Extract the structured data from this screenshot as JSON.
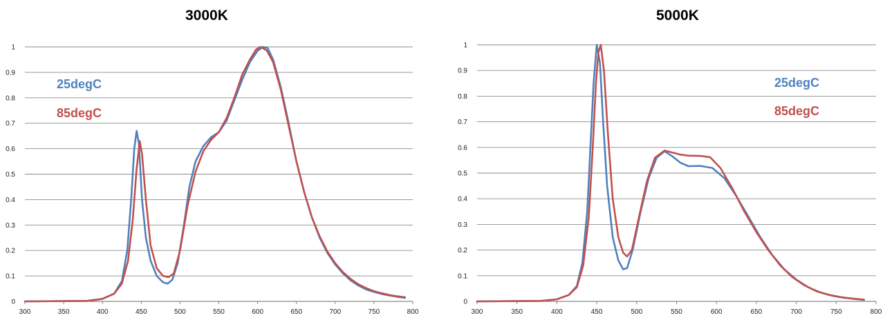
{
  "chart_data": [
    {
      "type": "line",
      "title": "3000K",
      "xlabel": "",
      "ylabel": "",
      "xlim": [
        300,
        800
      ],
      "ylim": [
        0,
        1
      ],
      "x_ticks": [
        "300",
        "350",
        "400",
        "450",
        "500",
        "550",
        "600",
        "650",
        "700",
        "750",
        "800"
      ],
      "y_ticks": [
        "0",
        "0.1",
        "0.2",
        "0.3",
        "0.4",
        "0.5",
        "0.6",
        "0.7",
        "0.8",
        "0.9",
        "1"
      ],
      "grid": "horizontal",
      "legend": "upper-left, text labels",
      "series": [
        {
          "name": "25degC",
          "color": "#4f81bd",
          "points": [
            [
              300,
              0
            ],
            [
              380,
              0.002
            ],
            [
              400,
              0.01
            ],
            [
              415,
              0.03
            ],
            [
              425,
              0.08
            ],
            [
              432,
              0.2
            ],
            [
              437,
              0.4
            ],
            [
              441,
              0.6
            ],
            [
              444,
              0.67
            ],
            [
              447,
              0.62
            ],
            [
              451,
              0.4
            ],
            [
              456,
              0.25
            ],
            [
              462,
              0.16
            ],
            [
              470,
              0.1
            ],
            [
              478,
              0.075
            ],
            [
              484,
              0.07
            ],
            [
              490,
              0.085
            ],
            [
              497,
              0.15
            ],
            [
              505,
              0.3
            ],
            [
              512,
              0.45
            ],
            [
              520,
              0.55
            ],
            [
              530,
              0.61
            ],
            [
              540,
              0.645
            ],
            [
              550,
              0.665
            ],
            [
              560,
              0.71
            ],
            [
              570,
              0.79
            ],
            [
              580,
              0.87
            ],
            [
              590,
              0.94
            ],
            [
              600,
              0.985
            ],
            [
              607,
              1.0
            ],
            [
              613,
              0.995
            ],
            [
              620,
              0.95
            ],
            [
              630,
              0.84
            ],
            [
              640,
              0.7
            ],
            [
              650,
              0.55
            ],
            [
              660,
              0.43
            ],
            [
              670,
              0.33
            ],
            [
              680,
              0.25
            ],
            [
              690,
              0.19
            ],
            [
              700,
              0.145
            ],
            [
              710,
              0.11
            ],
            [
              720,
              0.082
            ],
            [
              730,
              0.062
            ],
            [
              740,
              0.047
            ],
            [
              750,
              0.037
            ],
            [
              760,
              0.029
            ],
            [
              770,
              0.023
            ],
            [
              780,
              0.018
            ],
            [
              790,
              0.014
            ]
          ]
        },
        {
          "name": "85degC",
          "color": "#c0504d",
          "points": [
            [
              300,
              0
            ],
            [
              380,
              0.002
            ],
            [
              400,
              0.01
            ],
            [
              415,
              0.03
            ],
            [
              425,
              0.07
            ],
            [
              433,
              0.16
            ],
            [
              439,
              0.32
            ],
            [
              444,
              0.52
            ],
            [
              448,
              0.63
            ],
            [
              451,
              0.58
            ],
            [
              456,
              0.4
            ],
            [
              462,
              0.22
            ],
            [
              470,
              0.13
            ],
            [
              478,
              0.1
            ],
            [
              485,
              0.095
            ],
            [
              492,
              0.11
            ],
            [
              500,
              0.2
            ],
            [
              510,
              0.38
            ],
            [
              520,
              0.51
            ],
            [
              530,
              0.59
            ],
            [
              540,
              0.635
            ],
            [
              550,
              0.665
            ],
            [
              560,
              0.72
            ],
            [
              570,
              0.8
            ],
            [
              580,
              0.89
            ],
            [
              590,
              0.95
            ],
            [
              598,
              0.99
            ],
            [
              604,
              1.0
            ],
            [
              612,
              0.985
            ],
            [
              620,
              0.94
            ],
            [
              630,
              0.83
            ],
            [
              640,
              0.69
            ],
            [
              650,
              0.55
            ],
            [
              660,
              0.43
            ],
            [
              670,
              0.33
            ],
            [
              680,
              0.255
            ],
            [
              690,
              0.195
            ],
            [
              700,
              0.15
            ],
            [
              710,
              0.115
            ],
            [
              720,
              0.088
            ],
            [
              730,
              0.067
            ],
            [
              740,
              0.052
            ],
            [
              750,
              0.04
            ],
            [
              760,
              0.032
            ],
            [
              770,
              0.025
            ],
            [
              780,
              0.02
            ],
            [
              790,
              0.016
            ]
          ]
        }
      ]
    },
    {
      "type": "line",
      "title": "5000K",
      "xlabel": "",
      "ylabel": "",
      "xlim": [
        300,
        800
      ],
      "ylim": [
        0,
        1
      ],
      "x_ticks": [
        "300",
        "350",
        "400",
        "450",
        "500",
        "550",
        "600",
        "650",
        "700",
        "750",
        "800"
      ],
      "y_ticks": [
        "0",
        "0.1",
        "0.2",
        "0.3",
        "0.4",
        "0.5",
        "0.6",
        "0.7",
        "0.8",
        "0.9",
        "1"
      ],
      "grid": "horizontal",
      "legend": "upper-right, text labels",
      "series": [
        {
          "name": "25degC",
          "color": "#4f81bd",
          "points": [
            [
              300,
              0
            ],
            [
              380,
              0.002
            ],
            [
              400,
              0.008
            ],
            [
              415,
              0.025
            ],
            [
              425,
              0.06
            ],
            [
              432,
              0.15
            ],
            [
              438,
              0.35
            ],
            [
              442,
              0.6
            ],
            [
              446,
              0.85
            ],
            [
              450,
              1.0
            ],
            [
              454,
              0.93
            ],
            [
              458,
              0.7
            ],
            [
              463,
              0.45
            ],
            [
              470,
              0.25
            ],
            [
              477,
              0.16
            ],
            [
              483,
              0.125
            ],
            [
              488,
              0.13
            ],
            [
              495,
              0.2
            ],
            [
              505,
              0.35
            ],
            [
              515,
              0.48
            ],
            [
              525,
              0.56
            ],
            [
              535,
              0.585
            ],
            [
              545,
              0.565
            ],
            [
              555,
              0.54
            ],
            [
              565,
              0.527
            ],
            [
              580,
              0.528
            ],
            [
              595,
              0.52
            ],
            [
              610,
              0.48
            ],
            [
              625,
              0.41
            ],
            [
              640,
              0.33
            ],
            [
              655,
              0.25
            ],
            [
              670,
              0.18
            ],
            [
              685,
              0.125
            ],
            [
              700,
              0.085
            ],
            [
              715,
              0.055
            ],
            [
              730,
              0.035
            ],
            [
              745,
              0.022
            ],
            [
              760,
              0.014
            ],
            [
              775,
              0.009
            ],
            [
              785,
              0.006
            ]
          ]
        },
        {
          "name": "85degC",
          "color": "#c0504d",
          "points": [
            [
              300,
              0
            ],
            [
              380,
              0.002
            ],
            [
              400,
              0.008
            ],
            [
              415,
              0.025
            ],
            [
              425,
              0.055
            ],
            [
              433,
              0.14
            ],
            [
              440,
              0.33
            ],
            [
              445,
              0.6
            ],
            [
              449,
              0.85
            ],
            [
              452,
              0.97
            ],
            [
              455,
              1.0
            ],
            [
              459,
              0.9
            ],
            [
              464,
              0.65
            ],
            [
              470,
              0.4
            ],
            [
              477,
              0.25
            ],
            [
              483,
              0.19
            ],
            [
              488,
              0.175
            ],
            [
              494,
              0.2
            ],
            [
              503,
              0.33
            ],
            [
              513,
              0.47
            ],
            [
              523,
              0.56
            ],
            [
              535,
              0.588
            ],
            [
              545,
              0.58
            ],
            [
              555,
              0.572
            ],
            [
              565,
              0.568
            ],
            [
              580,
              0.567
            ],
            [
              592,
              0.562
            ],
            [
              605,
              0.52
            ],
            [
              620,
              0.44
            ],
            [
              635,
              0.35
            ],
            [
              650,
              0.27
            ],
            [
              665,
              0.2
            ],
            [
              680,
              0.14
            ],
            [
              695,
              0.095
            ],
            [
              710,
              0.063
            ],
            [
              725,
              0.04
            ],
            [
              740,
              0.026
            ],
            [
              755,
              0.017
            ],
            [
              770,
              0.011
            ],
            [
              785,
              0.007
            ]
          ]
        }
      ]
    }
  ]
}
